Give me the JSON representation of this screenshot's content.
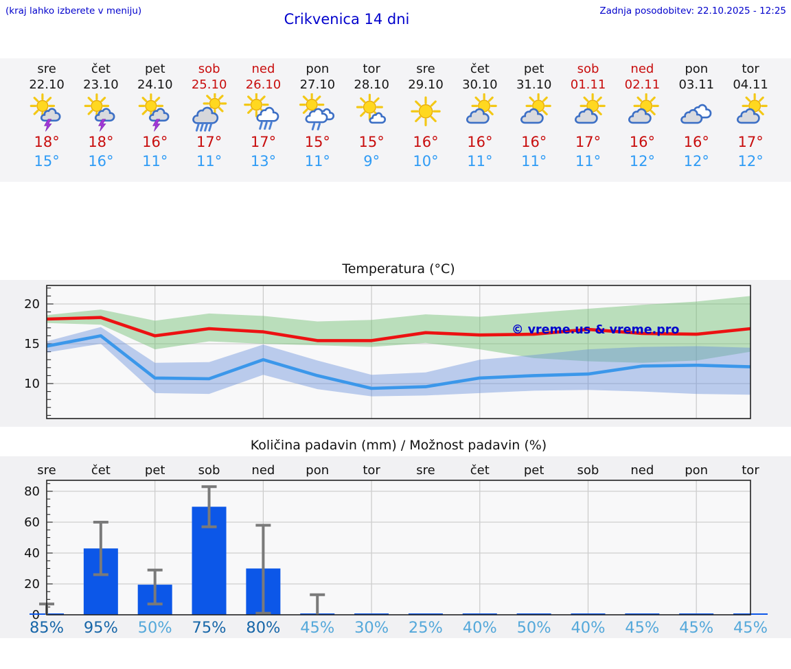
{
  "header": {
    "note": "(kraj lahko izberete v meniju)",
    "title": "Crikvenica 14 dni",
    "updated": "Zadnja posodobitev: 22.10.2025 - 12:25"
  },
  "days": [
    {
      "name": "sre",
      "date": "22.10",
      "weekend": false,
      "icon": "sun-storm",
      "high": "18°",
      "low": "15°"
    },
    {
      "name": "čet",
      "date": "23.10",
      "weekend": false,
      "icon": "sun-storm",
      "high": "18°",
      "low": "16°"
    },
    {
      "name": "pet",
      "date": "24.10",
      "weekend": false,
      "icon": "sun-storm",
      "high": "16°",
      "low": "11°"
    },
    {
      "name": "sob",
      "date": "25.10",
      "weekend": true,
      "icon": "rain-sun",
      "high": "17°",
      "low": "11°"
    },
    {
      "name": "ned",
      "date": "26.10",
      "weekend": true,
      "icon": "sun-rain",
      "high": "17°",
      "low": "13°"
    },
    {
      "name": "pon",
      "date": "27.10",
      "weekend": false,
      "icon": "sun-rain-light",
      "high": "15°",
      "low": "11°"
    },
    {
      "name": "tor",
      "date": "28.10",
      "weekend": false,
      "icon": "sun-cloud",
      "high": "15°",
      "low": "9°"
    },
    {
      "name": "sre",
      "date": "29.10",
      "weekend": false,
      "icon": "sun",
      "high": "16°",
      "low": "10°"
    },
    {
      "name": "čet",
      "date": "30.10",
      "weekend": false,
      "icon": "cloud-sun",
      "high": "16°",
      "low": "11°"
    },
    {
      "name": "pet",
      "date": "31.10",
      "weekend": false,
      "icon": "cloud-sun",
      "high": "16°",
      "low": "11°"
    },
    {
      "name": "sob",
      "date": "01.11",
      "weekend": true,
      "icon": "cloud-sun",
      "high": "17°",
      "low": "11°"
    },
    {
      "name": "ned",
      "date": "02.11",
      "weekend": true,
      "icon": "cloud-sun",
      "high": "16°",
      "low": "12°"
    },
    {
      "name": "pon",
      "date": "03.11",
      "weekend": false,
      "icon": "clouds",
      "high": "16°",
      "low": "12°"
    },
    {
      "name": "tor",
      "date": "04.11",
      "weekend": false,
      "icon": "cloud-sun",
      "high": "17°",
      "low": "12°"
    }
  ],
  "chart_data": [
    {
      "type": "line",
      "title": "Temperatura (°C)",
      "watermark": "© vreme.us & vreme.pro",
      "x_labels": [
        "sre",
        "čet",
        "pet",
        "sob",
        "ned",
        "pon",
        "tor",
        "sre",
        "čet",
        "pet",
        "sob",
        "ned",
        "pon",
        "tor"
      ],
      "ylim": [
        5.6,
        22.3
      ],
      "yticks": [
        10,
        15,
        20
      ],
      "grid": "on",
      "legend": "none",
      "series": [
        {
          "name": "max-temp-range-band",
          "kind": "band",
          "color": "rgba(110,190,110,0.45)",
          "upper": [
            18.6,
            19.3,
            17.9,
            18.8,
            18.5,
            17.8,
            18.0,
            18.7,
            18.4,
            18.9,
            19.4,
            19.9,
            20.3,
            21.0
          ],
          "lower": [
            17.6,
            17.4,
            14.3,
            15.3,
            15.0,
            14.8,
            14.6,
            15.1,
            14.3,
            13.2,
            12.8,
            12.6,
            12.9,
            14.0
          ]
        },
        {
          "name": "min-temp-range-band",
          "kind": "band",
          "color": "rgba(100,140,220,0.42)",
          "upper": [
            15.3,
            17.1,
            12.6,
            12.7,
            14.9,
            12.9,
            11.1,
            11.4,
            13.0,
            13.6,
            14.3,
            14.6,
            14.7,
            14.5
          ],
          "lower": [
            13.9,
            15.0,
            8.8,
            8.7,
            11.1,
            9.3,
            8.4,
            8.5,
            8.8,
            9.1,
            9.2,
            9.0,
            8.7,
            8.6
          ]
        },
        {
          "name": "max-temp-line",
          "kind": "line",
          "color": "#ec1212",
          "values": [
            18.1,
            18.3,
            16.0,
            16.9,
            16.5,
            15.4,
            15.4,
            16.4,
            16.1,
            16.2,
            16.8,
            16.3,
            16.2,
            16.9
          ]
        },
        {
          "name": "min-temp-line",
          "kind": "line",
          "color": "#3b97ea",
          "values": [
            14.7,
            16.0,
            10.7,
            10.6,
            13.0,
            11.0,
            9.4,
            9.6,
            10.7,
            11.0,
            11.2,
            12.2,
            12.3,
            12.1
          ]
        }
      ]
    },
    {
      "type": "bar",
      "title": "Količina padavin (mm) / Možnost padavin (%)",
      "x_labels": [
        "sre",
        "čet",
        "pet",
        "sob",
        "ned",
        "pon",
        "tor",
        "sre",
        "čet",
        "pet",
        "sob",
        "ned",
        "pon",
        "tor"
      ],
      "ylim": [
        0,
        87
      ],
      "yticks": [
        0,
        20,
        40,
        60,
        80
      ],
      "grid": "on",
      "values": [
        0.5,
        43,
        19.5,
        70,
        30,
        0.8,
        0.3,
        0.3,
        0.3,
        0.3,
        0.3,
        0.5,
        0.3,
        0.3
      ],
      "whisker_low": [
        0,
        26,
        7,
        57,
        1,
        0,
        null,
        null,
        null,
        null,
        null,
        null,
        null,
        null
      ],
      "whisker_high": [
        7,
        60,
        29,
        83,
        58,
        13,
        null,
        null,
        null,
        null,
        null,
        null,
        null,
        null
      ],
      "chance_pct": [
        85,
        95,
        50,
        75,
        80,
        45,
        30,
        25,
        40,
        50,
        40,
        45,
        45,
        45
      ]
    }
  ],
  "colors": {
    "header_blue": "#0000cc",
    "weekend_red": "#c80d0d",
    "high_temp_red": "#c80d0d",
    "low_temp_blue": "#2e9bf5",
    "line_red": "#ec1212",
    "line_blue": "#3b97ea",
    "band_green": "rgba(110,190,110,0.45)",
    "band_blue": "rgba(100,140,220,0.42)",
    "bar_blue": "#0c57e8",
    "whisker_gray": "#7a7a7a",
    "pct_dark": "#1766a8",
    "pct_light": "#54a8da"
  }
}
